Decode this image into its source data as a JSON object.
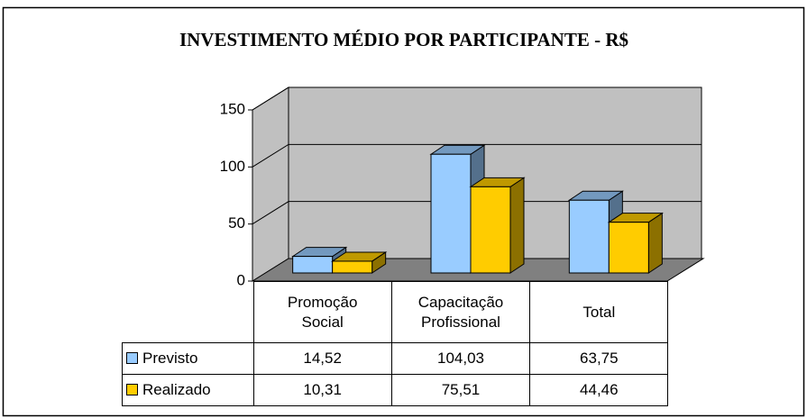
{
  "chart_data": {
    "type": "bar3d",
    "title": "INVESTIMENTO MÉDIO POR PARTICIPANTE - R$",
    "categories": [
      "Promoção Social",
      "Capacitação Profissional",
      "Total"
    ],
    "series": [
      {
        "name": "Previsto",
        "color": "#99ccff",
        "values": [
          14.52,
          104.03,
          63.75
        ],
        "value_labels": [
          "14,52",
          "104,03",
          "63,75"
        ]
      },
      {
        "name": "Realizado",
        "color": "#ffcc00",
        "values": [
          10.31,
          75.51,
          44.46
        ],
        "value_labels": [
          "10,31",
          "75,51",
          "44,46"
        ]
      }
    ],
    "ylim": [
      0,
      150
    ],
    "yticks": [
      0,
      50,
      100,
      150
    ],
    "grid": true
  }
}
